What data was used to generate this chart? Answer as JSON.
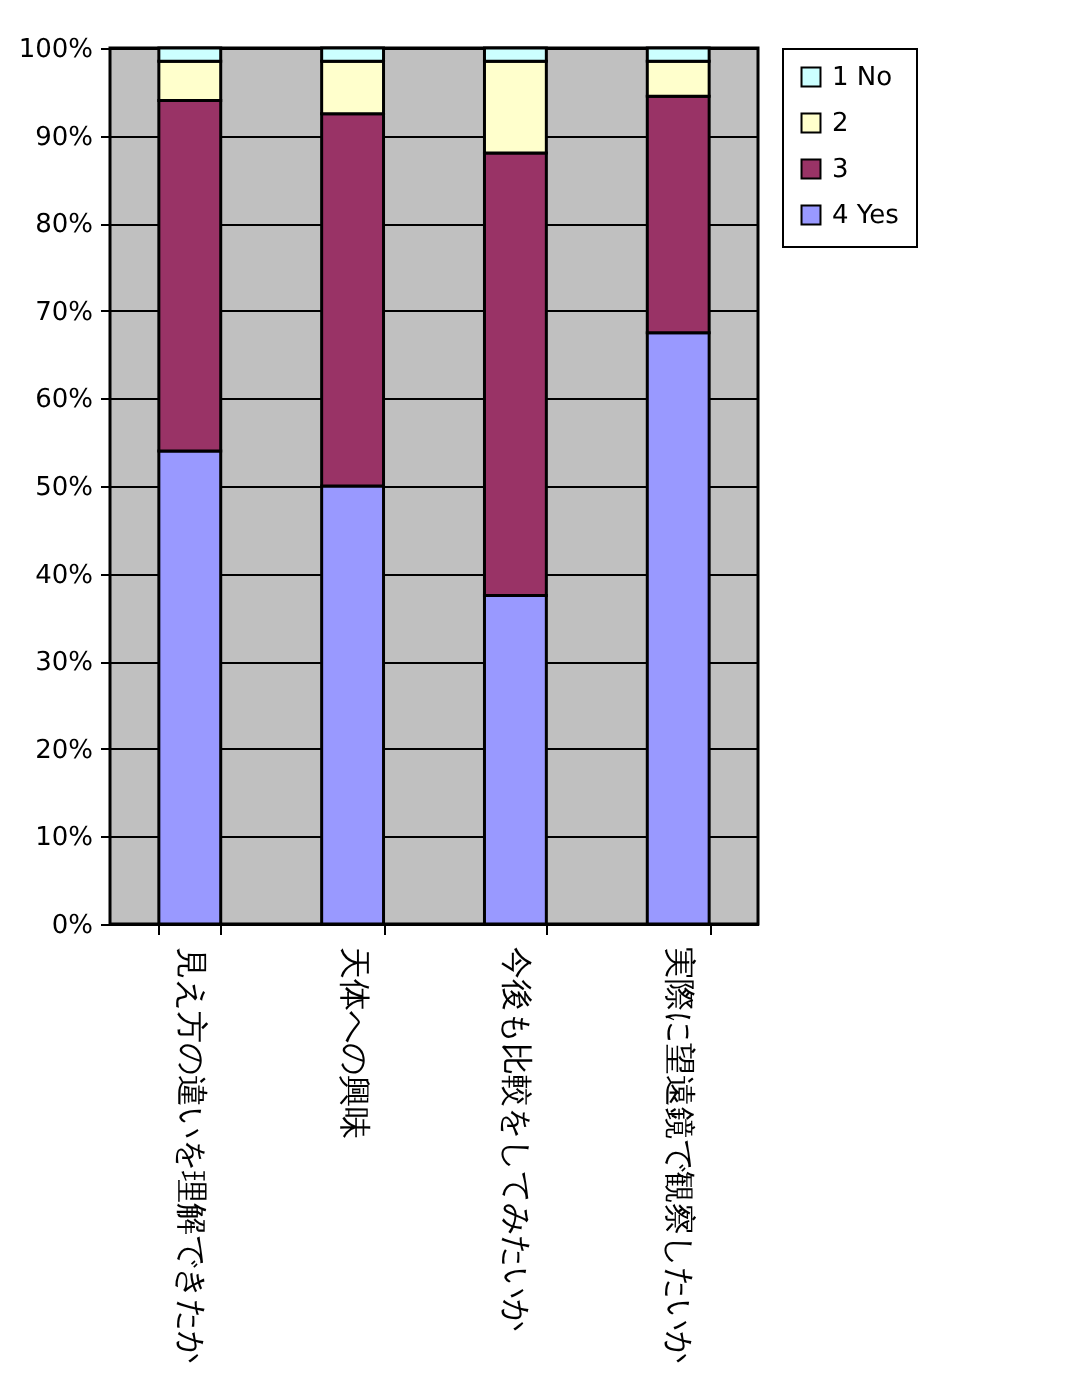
{
  "chart_data": {
    "type": "bar",
    "stacked": true,
    "categories": [
      "見え方の違いを理解できたか",
      "天体への興味",
      "今後も比較をしてみたいか",
      "実際に望遠鏡で観察したいか"
    ],
    "series": [
      {
        "name": "4 Yes",
        "color": "#9999ff",
        "values": [
          54,
          50,
          37.5,
          67.5
        ]
      },
      {
        "name": "3",
        "color": "#993366",
        "values": [
          40,
          42.5,
          50.5,
          27
        ]
      },
      {
        "name": "2",
        "color": "#ffffcc",
        "values": [
          4.5,
          6,
          10.5,
          4
        ]
      },
      {
        "name": "1 No",
        "color": "#ccffff",
        "values": [
          1.5,
          1.5,
          1.5,
          1.5
        ]
      }
    ],
    "ylim": [
      0,
      100
    ],
    "yticks": [
      {
        "value": 0,
        "label": "0%"
      },
      {
        "value": 10,
        "label": "10%"
      },
      {
        "value": 20,
        "label": "20%"
      },
      {
        "value": 30,
        "label": "30%"
      },
      {
        "value": 40,
        "label": "40%"
      },
      {
        "value": 50,
        "label": "50%"
      },
      {
        "value": 60,
        "label": "60%"
      },
      {
        "value": 70,
        "label": "70%"
      },
      {
        "value": 80,
        "label": "80%"
      },
      {
        "value": 90,
        "label": "90%"
      },
      {
        "value": 100,
        "label": "100%"
      }
    ],
    "grid": "y",
    "legend": "right"
  }
}
